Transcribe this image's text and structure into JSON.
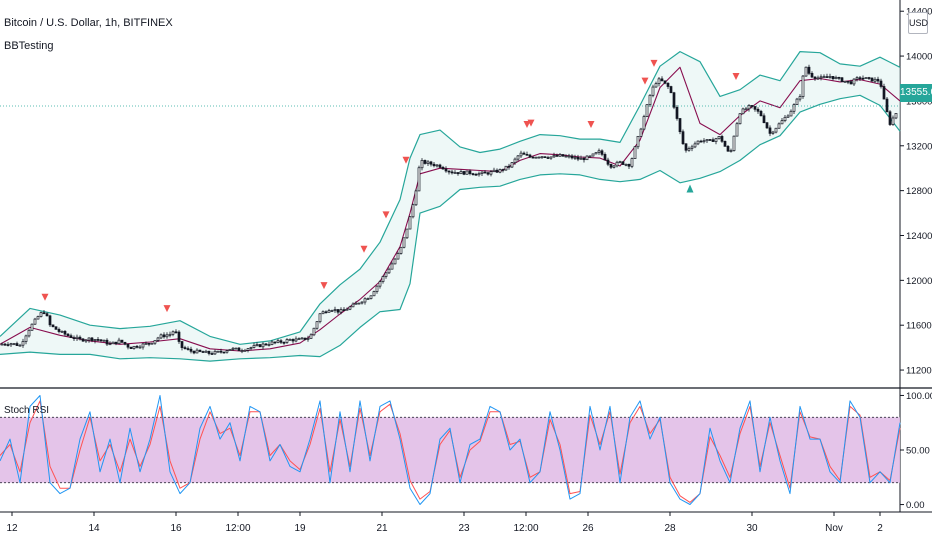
{
  "header": {
    "symbol_title": "Bitcoin / U.S. Dollar, 1h, BITFINEX",
    "study_name": "BBTesting",
    "currency": "USD"
  },
  "price_axis": {
    "current_price": "13555.0",
    "current_price_color": "#26a69a"
  },
  "rsi_panel": {
    "label": "Stoch RSI"
  },
  "colors": {
    "candle": "#131722",
    "bb_band": "#26a69a",
    "bb_fill": "#e0f2f1",
    "basis": "#880e4f",
    "sell_marker": "#ef5350",
    "buy_marker": "#26a69a",
    "k_line": "#2196f3",
    "d_line": "#ff5252",
    "rsi_band_fill": "#e1bee7"
  },
  "chart_data": [
    {
      "type": "line",
      "panel": "price",
      "y_ticks": [
        "14400.0",
        "14000.0",
        "13600.0",
        "13200.0",
        "12800.0",
        "12400.0",
        "12000.0",
        "11600.0",
        "11200.0"
      ],
      "y_tick_values": [
        14400,
        14000,
        13600,
        13200,
        12800,
        12400,
        12000,
        11600,
        11200
      ],
      "ylim": [
        11040,
        14500
      ],
      "x_ticks": [
        "12",
        "14",
        "16",
        "12:00",
        "19",
        "21",
        "23",
        "12:00",
        "26",
        "28",
        "30",
        "Nov",
        "2"
      ],
      "x_tick_index": [
        12,
        94,
        176,
        238,
        300,
        382,
        464,
        526,
        588,
        670,
        752,
        834,
        880
      ],
      "x_range": [
        0,
        900
      ],
      "series": [
        {
          "role": "basis",
          "x": [
            0,
            30,
            60,
            90,
            120,
            150,
            180,
            210,
            240,
            270,
            300,
            320,
            340,
            360,
            380,
            400,
            410,
            420,
            440,
            460,
            480,
            500,
            520,
            540,
            560,
            580,
            600,
            620,
            640,
            660,
            680,
            700,
            720,
            740,
            760,
            780,
            800,
            820,
            840,
            860,
            880,
            900
          ],
          "y": [
            11430,
            11580,
            11510,
            11460,
            11430,
            11450,
            11480,
            11390,
            11370,
            11390,
            11440,
            11560,
            11700,
            11830,
            11990,
            12300,
            12600,
            12950,
            13000,
            12990,
            12980,
            12970,
            13070,
            13130,
            13120,
            13100,
            13090,
            13020,
            13250,
            13720,
            13900,
            13400,
            13300,
            13470,
            13600,
            13540,
            13780,
            13800,
            13770,
            13790,
            13750,
            13600
          ]
        },
        {
          "role": "upper_band",
          "x": [
            0,
            30,
            60,
            90,
            120,
            150,
            180,
            210,
            240,
            270,
            300,
            320,
            340,
            360,
            380,
            400,
            410,
            420,
            440,
            460,
            480,
            500,
            520,
            540,
            560,
            580,
            600,
            620,
            640,
            660,
            680,
            700,
            720,
            740,
            760,
            780,
            800,
            820,
            840,
            860,
            880,
            900
          ],
          "y": [
            11500,
            11750,
            11690,
            11600,
            11570,
            11590,
            11640,
            11500,
            11430,
            11460,
            11540,
            11790,
            11960,
            12100,
            12340,
            12720,
            13090,
            13300,
            13340,
            13190,
            13140,
            13170,
            13240,
            13300,
            13290,
            13260,
            13260,
            13230,
            13560,
            13910,
            14040,
            13950,
            13640,
            13700,
            13830,
            13780,
            14040,
            14030,
            13930,
            13910,
            13990,
            13900
          ]
        },
        {
          "role": "lower_band",
          "x": [
            0,
            30,
            60,
            90,
            120,
            150,
            180,
            210,
            240,
            270,
            300,
            320,
            340,
            360,
            380,
            400,
            410,
            420,
            440,
            460,
            480,
            500,
            520,
            540,
            560,
            580,
            600,
            620,
            640,
            660,
            680,
            700,
            720,
            740,
            760,
            780,
            800,
            820,
            840,
            860,
            880,
            900
          ],
          "y": [
            11340,
            11360,
            11340,
            11340,
            11300,
            11310,
            11300,
            11280,
            11300,
            11310,
            11330,
            11320,
            11420,
            11580,
            11720,
            11740,
            11970,
            12600,
            12660,
            12810,
            12830,
            12840,
            12900,
            12940,
            12950,
            12940,
            12900,
            12880,
            12900,
            12980,
            12870,
            12910,
            12970,
            13070,
            13210,
            13290,
            13500,
            13570,
            13620,
            13650,
            13560,
            13330
          ]
        },
        {
          "role": "close",
          "x": [
            0,
            10,
            20,
            30,
            40,
            45,
            50,
            60,
            70,
            80,
            90,
            100,
            110,
            120,
            130,
            140,
            150,
            160,
            170,
            175,
            180,
            190,
            200,
            210,
            220,
            230,
            240,
            250,
            260,
            270,
            280,
            290,
            300,
            310,
            320,
            330,
            340,
            350,
            360,
            370,
            380,
            390,
            400,
            405,
            410,
            415,
            420,
            430,
            440,
            450,
            460,
            470,
            480,
            490,
            500,
            510,
            520,
            530,
            540,
            550,
            560,
            570,
            580,
            590,
            600,
            610,
            620,
            630,
            640,
            650,
            655,
            660,
            670,
            680,
            685,
            690,
            700,
            710,
            720,
            730,
            735,
            740,
            750,
            760,
            770,
            780,
            790,
            800,
            805,
            810,
            820,
            830,
            840,
            850,
            860,
            870,
            880,
            885,
            890,
            900
          ],
          "y": [
            11430,
            11440,
            11420,
            11580,
            11700,
            11720,
            11600,
            11540,
            11500,
            11470,
            11480,
            11470,
            11430,
            11460,
            11400,
            11420,
            11440,
            11500,
            11520,
            11560,
            11410,
            11370,
            11360,
            11350,
            11360,
            11390,
            11380,
            11400,
            11420,
            11440,
            11450,
            11470,
            11470,
            11490,
            11700,
            11750,
            11720,
            11760,
            11810,
            11860,
            11990,
            12120,
            12260,
            12400,
            12560,
            12750,
            13060,
            13040,
            13020,
            12970,
            12960,
            12960,
            12950,
            12960,
            12980,
            13020,
            13130,
            13100,
            13110,
            13100,
            13110,
            13100,
            13080,
            13100,
            13150,
            13020,
            13050,
            13030,
            13330,
            13650,
            13760,
            13790,
            13710,
            13320,
            13150,
            13190,
            13250,
            13240,
            13280,
            13110,
            13340,
            13500,
            13550,
            13490,
            13310,
            13400,
            13500,
            13650,
            13920,
            13830,
            13800,
            13820,
            13790,
            13760,
            13810,
            13790,
            13780,
            13560,
            13400,
            13555
          ]
        }
      ],
      "sell_signals_x": [
        45,
        167,
        324,
        364,
        386,
        406,
        527,
        531,
        591,
        645,
        654,
        736
      ],
      "buy_signals_x": [
        690
      ]
    },
    {
      "type": "line",
      "panel": "stoch_rsi",
      "y_ticks": [
        "100.00",
        "50.00",
        "0.00"
      ],
      "y_tick_values": [
        100,
        50,
        0
      ],
      "bands": [
        80,
        20
      ],
      "ylim": [
        -5,
        105
      ],
      "x_range": [
        0,
        900
      ],
      "series": [
        {
          "role": "K",
          "x": [
            0,
            10,
            20,
            30,
            40,
            50,
            60,
            70,
            80,
            90,
            100,
            110,
            120,
            130,
            140,
            150,
            160,
            170,
            180,
            190,
            200,
            210,
            220,
            230,
            240,
            250,
            260,
            270,
            280,
            290,
            300,
            310,
            320,
            330,
            340,
            350,
            360,
            370,
            380,
            390,
            400,
            410,
            420,
            430,
            440,
            450,
            460,
            470,
            480,
            490,
            500,
            510,
            520,
            530,
            540,
            550,
            560,
            570,
            580,
            590,
            600,
            610,
            620,
            630,
            640,
            650,
            660,
            670,
            680,
            690,
            700,
            710,
            720,
            730,
            740,
            750,
            760,
            770,
            780,
            790,
            800,
            810,
            820,
            830,
            840,
            850,
            860,
            870,
            880,
            890,
            900
          ],
          "y": [
            40,
            60,
            20,
            90,
            100,
            20,
            10,
            15,
            60,
            85,
            30,
            60,
            20,
            70,
            30,
            60,
            100,
            30,
            10,
            20,
            70,
            90,
            60,
            75,
            40,
            90,
            85,
            40,
            55,
            35,
            30,
            60,
            95,
            20,
            85,
            30,
            95,
            40,
            90,
            95,
            60,
            15,
            0,
            10,
            60,
            70,
            20,
            55,
            60,
            90,
            85,
            50,
            60,
            20,
            30,
            85,
            50,
            5,
            10,
            90,
            50,
            90,
            20,
            80,
            95,
            60,
            80,
            20,
            5,
            0,
            10,
            70,
            40,
            20,
            70,
            95,
            30,
            80,
            40,
            10,
            90,
            60,
            60,
            30,
            20,
            95,
            80,
            20,
            30,
            20,
            75
          ]
        },
        {
          "role": "D",
          "x": [
            0,
            10,
            20,
            30,
            40,
            50,
            60,
            70,
            80,
            90,
            100,
            110,
            120,
            130,
            140,
            150,
            160,
            170,
            180,
            190,
            200,
            210,
            220,
            230,
            240,
            250,
            260,
            270,
            280,
            290,
            300,
            310,
            320,
            330,
            340,
            350,
            360,
            370,
            380,
            390,
            400,
            410,
            420,
            430,
            440,
            450,
            460,
            470,
            480,
            490,
            500,
            510,
            520,
            530,
            540,
            550,
            560,
            570,
            580,
            590,
            600,
            610,
            620,
            630,
            640,
            650,
            660,
            670,
            680,
            690,
            700,
            710,
            720,
            730,
            740,
            750,
            760,
            770,
            780,
            790,
            800,
            810,
            820,
            830,
            840,
            850,
            860,
            870,
            880,
            890,
            900
          ],
          "y": [
            45,
            55,
            30,
            75,
            95,
            35,
            15,
            15,
            50,
            80,
            40,
            55,
            30,
            60,
            35,
            55,
            90,
            40,
            15,
            20,
            60,
            85,
            65,
            70,
            45,
            85,
            85,
            45,
            55,
            40,
            32,
            55,
            88,
            30,
            78,
            35,
            88,
            45,
            85,
            92,
            65,
            22,
            5,
            12,
            55,
            68,
            25,
            50,
            58,
            85,
            85,
            55,
            58,
            25,
            30,
            78,
            55,
            10,
            12,
            82,
            55,
            85,
            28,
            75,
            90,
            65,
            78,
            25,
            8,
            2,
            10,
            62,
            45,
            25,
            65,
            90,
            35,
            75,
            45,
            15,
            85,
            62,
            60,
            35,
            22,
            90,
            82,
            25,
            30,
            22,
            70
          ]
        }
      ]
    }
  ]
}
